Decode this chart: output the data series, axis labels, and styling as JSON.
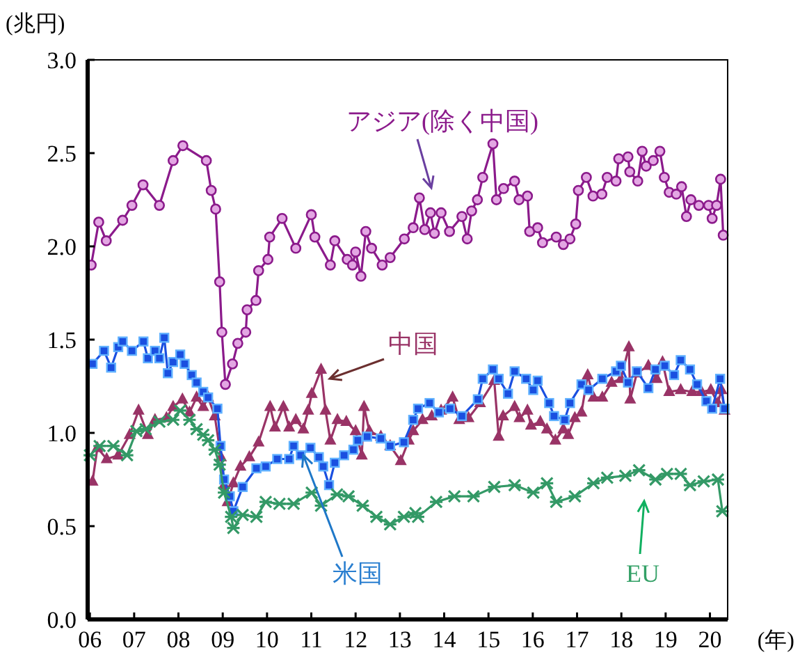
{
  "chart_data": {
    "type": "line",
    "ylabel": "(兆円)",
    "xlabel": "(年)",
    "xlim": [
      2005.95,
      2020.4
    ],
    "xticks": [
      {
        "value": 2006,
        "label": "06"
      },
      {
        "value": 2007,
        "label": "07"
      },
      {
        "value": 2008,
        "label": "08"
      },
      {
        "value": 2009,
        "label": "09"
      },
      {
        "value": 2010,
        "label": "10"
      },
      {
        "value": 2011,
        "label": "11"
      },
      {
        "value": 2012,
        "label": "12"
      },
      {
        "value": 2013,
        "label": "13"
      },
      {
        "value": 2014,
        "label": "14"
      },
      {
        "value": 2015,
        "label": "15"
      },
      {
        "value": 2016,
        "label": "16"
      },
      {
        "value": 2017,
        "label": "17"
      },
      {
        "value": 2018,
        "label": "18"
      },
      {
        "value": 2019,
        "label": "19"
      },
      {
        "value": 2020,
        "label": "20"
      }
    ],
    "ylim": [
      0,
      3
    ],
    "yticks": [
      {
        "value": 0,
        "label": "0.0"
      },
      {
        "value": 0.5,
        "label": "0.5"
      },
      {
        "value": 1,
        "label": "1.0"
      },
      {
        "value": 1.5,
        "label": "1.5"
      },
      {
        "value": 2,
        "label": "2.0"
      },
      {
        "value": 2.5,
        "label": "2.5"
      },
      {
        "value": 3,
        "label": "3.0"
      }
    ],
    "grid": false,
    "line_style": "solid",
    "series": [
      {
        "name": "アジア(除く中国)",
        "color": "#8b1a8b",
        "marker": "circle",
        "x": [
          2006.03,
          2006.2,
          2006.37,
          2006.74,
          2006.95,
          2007.2,
          2007.57,
          2007.88,
          2008.1,
          2008.63,
          2008.74,
          2008.84,
          2008.93,
          2008.98,
          2009.06,
          2009.22,
          2009.34,
          2009.52,
          2009.55,
          2009.75,
          2009.81,
          2010.02,
          2010.06,
          2010.34,
          2010.65,
          2011.0,
          2011.08,
          2011.43,
          2011.53,
          2011.81,
          2011.93,
          2012.0,
          2012.12,
          2012.23,
          2012.36,
          2012.6,
          2012.78,
          2013.1,
          2013.3,
          2013.44,
          2013.56,
          2013.69,
          2013.78,
          2013.93,
          2014.12,
          2014.4,
          2014.52,
          2014.62,
          2014.75,
          2014.87,
          2015.1,
          2015.18,
          2015.34,
          2015.59,
          2015.69,
          2015.88,
          2015.93,
          2016.11,
          2016.22,
          2016.53,
          2016.69,
          2016.84,
          2016.97,
          2017.03,
          2017.21,
          2017.36,
          2017.56,
          2017.68,
          2017.88,
          2017.94,
          2018.15,
          2018.19,
          2018.37,
          2018.47,
          2018.56,
          2018.72,
          2018.87,
          2018.97,
          2019.08,
          2019.24,
          2019.36,
          2019.47,
          2019.57,
          2019.75,
          2019.97,
          2020.05,
          2020.15,
          2020.24,
          2020.3
        ],
        "values": [
          1.9,
          2.13,
          2.03,
          2.14,
          2.22,
          2.33,
          2.22,
          2.46,
          2.54,
          2.46,
          2.3,
          2.2,
          1.81,
          1.54,
          1.26,
          1.37,
          1.48,
          1.54,
          1.66,
          1.71,
          1.87,
          1.93,
          2.05,
          2.15,
          1.99,
          2.17,
          2.05,
          1.9,
          2.03,
          1.93,
          1.9,
          1.97,
          1.84,
          2.08,
          1.99,
          1.9,
          1.94,
          2.04,
          2.1,
          2.26,
          2.09,
          2.18,
          2.07,
          2.18,
          2.08,
          2.16,
          2.04,
          2.19,
          2.25,
          2.37,
          2.55,
          2.25,
          2.31,
          2.35,
          2.25,
          2.27,
          2.08,
          2.1,
          2.02,
          2.05,
          2.01,
          2.04,
          2.12,
          2.3,
          2.37,
          2.27,
          2.28,
          2.37,
          2.35,
          2.47,
          2.48,
          2.4,
          2.35,
          2.51,
          2.43,
          2.46,
          2.51,
          2.37,
          2.29,
          2.28,
          2.32,
          2.16,
          2.25,
          2.22,
          2.22,
          2.15,
          2.22,
          2.36,
          2.06
        ]
      },
      {
        "name": "中国",
        "color": "#993366",
        "marker": "triangle",
        "x": [
          2006.06,
          2006.17,
          2006.38,
          2006.64,
          2006.9,
          2007.1,
          2007.31,
          2007.47,
          2007.73,
          2007.88,
          2008.09,
          2008.25,
          2008.41,
          2008.56,
          2008.67,
          2008.82,
          2008.96,
          2009.03,
          2009.11,
          2009.24,
          2009.4,
          2009.6,
          2009.81,
          2010.07,
          2010.18,
          2010.37,
          2010.5,
          2010.65,
          2010.82,
          2010.93,
          2011.01,
          2011.22,
          2011.32,
          2011.43,
          2011.59,
          2011.79,
          2012.0,
          2012.14,
          2012.19,
          2012.31,
          2012.57,
          2012.78,
          2013.02,
          2013.2,
          2013.3,
          2013.51,
          2013.72,
          2013.93,
          2014.19,
          2014.34,
          2014.55,
          2014.81,
          2015.13,
          2015.23,
          2015.33,
          2015.59,
          2015.7,
          2015.88,
          2015.96,
          2016.17,
          2016.32,
          2016.51,
          2016.69,
          2016.8,
          2016.95,
          2017.1,
          2017.24,
          2017.37,
          2017.57,
          2017.78,
          2017.99,
          2018.17,
          2018.2,
          2018.35,
          2018.61,
          2018.8,
          2018.93,
          2019.08,
          2019.34,
          2019.6,
          2019.81,
          2020.02,
          2020.18,
          2020.26,
          2020.33
        ],
        "values": [
          0.74,
          0.92,
          0.86,
          0.88,
          0.99,
          1.12,
          0.99,
          1.07,
          1.08,
          1.14,
          1.18,
          1.11,
          1.19,
          1.14,
          1.19,
          1.09,
          0.87,
          0.72,
          0.63,
          0.73,
          0.82,
          0.87,
          0.95,
          1.14,
          1.03,
          1.14,
          1.03,
          1.07,
          1.02,
          1.12,
          1.21,
          1.34,
          1.12,
          0.96,
          1.07,
          1.06,
          1.01,
          0.88,
          1.14,
          1.01,
          0.98,
          0.93,
          0.85,
          0.96,
          1.01,
          1.07,
          1.09,
          1.12,
          1.19,
          1.07,
          1.08,
          1.16,
          1.28,
          0.98,
          1.09,
          1.14,
          1.08,
          1.12,
          1.04,
          1.06,
          1.02,
          0.96,
          1.02,
          0.99,
          1.08,
          1.11,
          1.31,
          1.19,
          1.19,
          1.27,
          1.29,
          1.46,
          1.18,
          1.32,
          1.36,
          1.29,
          1.38,
          1.22,
          1.23,
          1.22,
          1.22,
          1.23,
          1.16,
          1.23,
          1.12
        ]
      },
      {
        "name": "米国",
        "color": "#1a4fe0",
        "marker": "square",
        "x": [
          2006.06,
          2006.32,
          2006.48,
          2006.64,
          2006.74,
          2006.95,
          2007.21,
          2007.31,
          2007.47,
          2007.57,
          2007.68,
          2007.76,
          2007.88,
          2008.04,
          2008.14,
          2008.3,
          2008.41,
          2008.56,
          2008.67,
          2008.88,
          2008.95,
          2009.03,
          2009.16,
          2009.24,
          2009.45,
          2009.76,
          2009.97,
          2010.23,
          2010.5,
          2010.6,
          2010.76,
          2010.98,
          2011.17,
          2011.27,
          2011.4,
          2011.53,
          2011.74,
          2011.95,
          2012.05,
          2012.26,
          2012.57,
          2012.78,
          2013.09,
          2013.3,
          2013.41,
          2013.67,
          2013.88,
          2014.13,
          2014.4,
          2014.76,
          2014.87,
          2015.1,
          2015.23,
          2015.44,
          2015.59,
          2015.85,
          2016.01,
          2016.11,
          2016.37,
          2016.48,
          2016.72,
          2016.84,
          2017.1,
          2017.26,
          2017.57,
          2017.88,
          2017.99,
          2018.15,
          2018.35,
          2018.61,
          2018.77,
          2018.98,
          2019.19,
          2019.34,
          2019.55,
          2019.71,
          2019.92,
          2020.05,
          2020.23,
          2020.33
        ],
        "values": [
          1.37,
          1.44,
          1.35,
          1.46,
          1.49,
          1.44,
          1.49,
          1.4,
          1.44,
          1.4,
          1.51,
          1.32,
          1.38,
          1.42,
          1.37,
          1.31,
          1.27,
          1.22,
          1.19,
          1.13,
          0.93,
          0.75,
          0.66,
          0.58,
          0.71,
          0.81,
          0.82,
          0.86,
          0.86,
          0.93,
          0.88,
          0.92,
          0.87,
          0.82,
          0.72,
          0.84,
          0.88,
          0.91,
          0.96,
          0.98,
          0.97,
          0.93,
          0.95,
          1.07,
          1.13,
          1.16,
          1.11,
          1.13,
          1.09,
          1.18,
          1.29,
          1.34,
          1.29,
          1.21,
          1.33,
          1.29,
          1.23,
          1.28,
          1.16,
          1.09,
          1.07,
          1.16,
          1.26,
          1.23,
          1.29,
          1.33,
          1.36,
          1.27,
          1.33,
          1.24,
          1.34,
          1.36,
          1.31,
          1.39,
          1.34,
          1.26,
          1.17,
          1.13,
          1.29,
          1.13
        ]
      },
      {
        "name": "EU",
        "color": "#339966",
        "marker": "cross",
        "x": [
          2006.0,
          2006.22,
          2006.53,
          2006.84,
          2007.05,
          2007.26,
          2007.57,
          2007.88,
          2008.04,
          2008.25,
          2008.41,
          2008.56,
          2008.67,
          2008.82,
          2008.93,
          2009.03,
          2009.19,
          2009.24,
          2009.45,
          2009.76,
          2009.97,
          2010.28,
          2010.6,
          2011.01,
          2011.22,
          2011.58,
          2011.84,
          2012.16,
          2012.47,
          2012.78,
          2013.09,
          2013.35,
          2013.41,
          2013.82,
          2014.23,
          2014.66,
          2015.13,
          2015.59,
          2016.01,
          2016.32,
          2016.53,
          2016.95,
          2017.37,
          2017.68,
          2018.09,
          2018.4,
          2018.77,
          2019.03,
          2019.34,
          2019.55,
          2019.86,
          2020.18,
          2020.28
        ],
        "values": [
          0.88,
          0.93,
          0.93,
          0.88,
          1.01,
          1.02,
          1.06,
          1.07,
          1.12,
          1.07,
          1.02,
          0.99,
          0.96,
          0.91,
          0.83,
          0.68,
          0.55,
          0.49,
          0.56,
          0.55,
          0.63,
          0.62,
          0.62,
          0.68,
          0.61,
          0.67,
          0.66,
          0.61,
          0.55,
          0.51,
          0.55,
          0.57,
          0.55,
          0.63,
          0.66,
          0.66,
          0.71,
          0.72,
          0.68,
          0.73,
          0.63,
          0.66,
          0.73,
          0.76,
          0.77,
          0.8,
          0.75,
          0.78,
          0.78,
          0.72,
          0.74,
          0.75,
          0.58
        ]
      }
    ]
  }
}
